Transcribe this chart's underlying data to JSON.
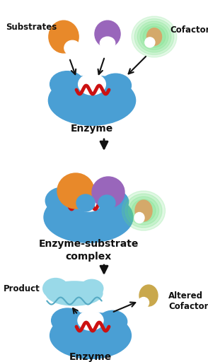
{
  "bg_color": "#ffffff",
  "enzyme_blue": "#4a9fd4",
  "enzyme_blue2": "#5baee0",
  "substrate_orange": "#e8892a",
  "substrate_purple": "#9966bb",
  "cofactor_tan": "#d4a96a",
  "cofactor_yellow": "#c9a84c",
  "cofactor_glow": "#66dd77",
  "binding_red": "#cc1111",
  "product_cyan": "#99d9e8",
  "product_cyan_edge": "#55aac4",
  "arrow_color": "#111111",
  "text_color": "#111111",
  "label_substrates": "Substrates",
  "label_cofactor": "Cofactor",
  "label_enzyme1": "Enzyme",
  "label_complex": "Enzyme-substrate\ncomplex",
  "label_product": "Product",
  "label_altered": "Altered\nCofactor",
  "label_enzyme3": "Enzyme"
}
